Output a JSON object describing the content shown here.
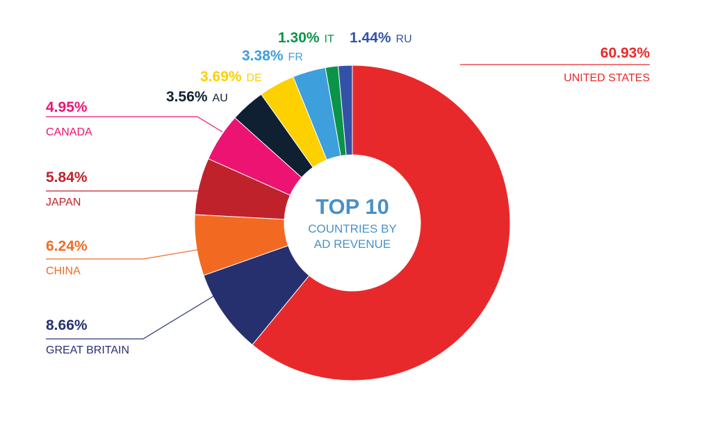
{
  "chart_data": {
    "type": "pie",
    "donut": true,
    "center_text": {
      "title": "TOP 10",
      "line1": "COUNTRIES BY",
      "line2": "AD REVENUE",
      "color": "#4a90c8"
    },
    "unit": "%",
    "slices": [
      {
        "label": "UNITED STATES",
        "value": 60.93,
        "display": "60.93%",
        "color": "#e8292b"
      },
      {
        "label": "GREAT BRITAIN",
        "value": 8.66,
        "display": "8.66%",
        "color": "#27306f"
      },
      {
        "label": "CHINA",
        "value": 6.24,
        "display": "6.24%",
        "color": "#f26a22"
      },
      {
        "label": "JAPAN",
        "value": 5.84,
        "display": "5.84%",
        "color": "#c0222b"
      },
      {
        "label": "CANADA",
        "value": 4.95,
        "display": "4.95%",
        "color": "#ec1373"
      },
      {
        "label": "AU",
        "value": 3.56,
        "display": "3.56%",
        "color": "#0f2033"
      },
      {
        "label": "DE",
        "value": 3.69,
        "display": "3.69%",
        "color": "#fdd000"
      },
      {
        "label": "FR",
        "value": 3.38,
        "display": "3.38%",
        "color": "#3d9fdc"
      },
      {
        "label": "IT",
        "value": 1.3,
        "display": "1.30%",
        "color": "#0a9449"
      },
      {
        "label": "RU",
        "value": 1.44,
        "display": "1.44%",
        "color": "#3152a6"
      }
    ]
  }
}
